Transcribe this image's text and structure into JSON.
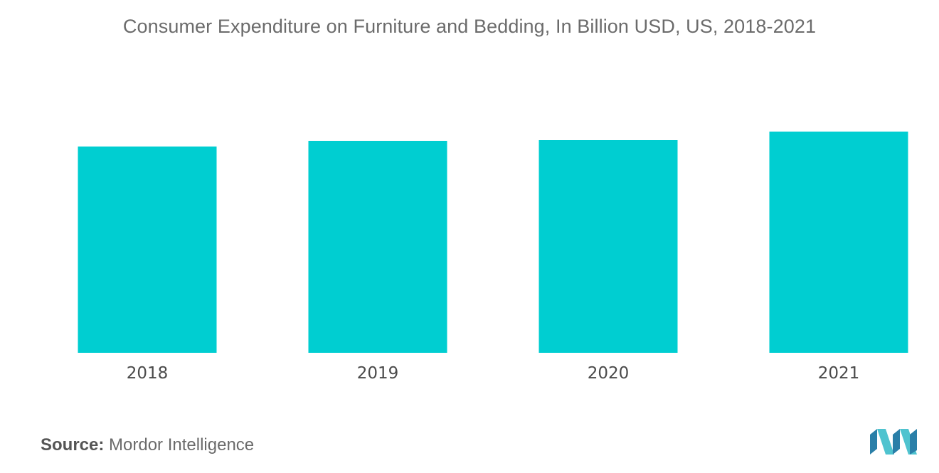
{
  "header": {
    "title": "Consumer Expenditure on Furniture and Bedding, In Billion USD, US, 2018-2021"
  },
  "footer": {
    "source_label": "Source:",
    "source_text": "Mordor Intelligence"
  },
  "logo": {
    "icon": "mordor-intelligence-logo-icon"
  },
  "colors": {
    "bar": "#00ced1",
    "logo_dark": "#2a7fa8",
    "logo_light": "#4fc3cf"
  },
  "chart_data": {
    "type": "bar",
    "title": "Consumer Expenditure on Furniture and Bedding, In Billion USD, US, 2018-2021",
    "xlabel": "",
    "ylabel": "",
    "categories": [
      "2018",
      "2019",
      "2020",
      "2021"
    ],
    "values": [
      290,
      298,
      299,
      311
    ],
    "ylim": [
      0,
      340
    ],
    "grid": false,
    "legend": "none"
  }
}
